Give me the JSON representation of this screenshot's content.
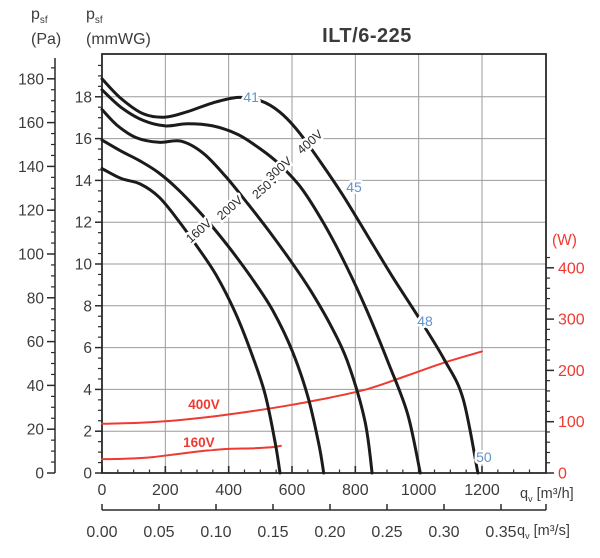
{
  "labels": {
    "p_base": "p",
    "p_sub": "sf",
    "pa_unit": "(Pa)",
    "mmwg_unit": "(mmWG)",
    "w_unit": "(W)",
    "q_base": "q",
    "q_sub": "v",
    "m3h_unit": " [m³/h]",
    "m3s_unit": " [m³/s]"
  },
  "chart_data": {
    "type": "line",
    "title": "ILT/6-225",
    "colors": {
      "curve_black": "#1b1b1b",
      "curve_red": "#ee3a31",
      "label_blue": "#6292cc",
      "grid": "#9b9b9b",
      "axis": "#2a2a2a",
      "text": "#3c3c3c"
    },
    "axes": {
      "pa": {
        "title": "psf (Pa)",
        "ticks": [
          0,
          20,
          40,
          60,
          80,
          100,
          120,
          140,
          160,
          180
        ],
        "minor_step": 5,
        "max_minor": 185
      },
      "mmwg": {
        "title": "psf (mmWG)",
        "ticks": [
          0,
          2,
          4,
          6,
          8,
          10,
          12,
          14,
          16,
          18
        ],
        "minor_step": 0.5,
        "max_minor": 19.5
      },
      "w": {
        "title": "(W)",
        "ticks": [
          0,
          100,
          200,
          300,
          400
        ],
        "minor_step": 20,
        "max_minor": 420
      },
      "m3h": {
        "title": "qv [m3/h]",
        "ticks": [
          0,
          200,
          400,
          600,
          800,
          1000,
          1200
        ],
        "minor_step": 50,
        "max_minor": 1350,
        "grid_ticks": [
          200,
          400,
          600,
          800,
          1000,
          1200
        ]
      },
      "m3s": {
        "title": "qv [m3/s]",
        "ticks": [
          "0.00",
          "0.05",
          "0.10",
          "0.15",
          "0.20",
          "0.25",
          "0.30",
          "0.35"
        ]
      }
    },
    "pressure_curves_pa_vs_m3h": [
      {
        "name": "160V",
        "label": {
          "q": 306,
          "pa": 110.5,
          "rot": -41
        },
        "points": [
          [
            0,
            139
          ],
          [
            60,
            134.5
          ],
          [
            120,
            132
          ],
          [
            180,
            126
          ],
          [
            240,
            115.5
          ],
          [
            300,
            103.5
          ],
          [
            360,
            90.5
          ],
          [
            420,
            73.5
          ],
          [
            470,
            55.5
          ],
          [
            515,
            36
          ],
          [
            548,
            13
          ],
          [
            562,
            0
          ]
        ]
      },
      {
        "name": "200V",
        "label": {
          "q": 404,
          "pa": 121.0,
          "rot": -41
        },
        "points": [
          [
            0,
            152
          ],
          [
            60,
            147
          ],
          [
            120,
            142.5
          ],
          [
            180,
            137
          ],
          [
            240,
            129.5
          ],
          [
            300,
            120.5
          ],
          [
            360,
            110.5
          ],
          [
            420,
            99.5
          ],
          [
            480,
            87.5
          ],
          [
            540,
            74
          ],
          [
            600,
            56
          ],
          [
            650,
            35
          ],
          [
            685,
            13
          ],
          [
            700,
            0
          ]
        ]
      },
      {
        "name": "250V",
        "label": {
          "q": 515,
          "pa": 130.6,
          "rot": -41
        },
        "points": [
          [
            0,
            166
          ],
          [
            50,
            158.5
          ],
          [
            110,
            153
          ],
          [
            180,
            151
          ],
          [
            250,
            151.5
          ],
          [
            320,
            146
          ],
          [
            390,
            135.5
          ],
          [
            460,
            123
          ],
          [
            530,
            110
          ],
          [
            600,
            96
          ],
          [
            660,
            83
          ],
          [
            720,
            68
          ],
          [
            775,
            51
          ],
          [
            830,
            24
          ],
          [
            853,
            0
          ]
        ]
      },
      {
        "name": "300V",
        "label": {
          "q": 559,
          "pa": 138.8,
          "rot": -41
        },
        "points": [
          [
            0,
            175
          ],
          [
            60,
            167
          ],
          [
            130,
            161
          ],
          [
            200,
            158.5
          ],
          [
            270,
            159.5
          ],
          [
            350,
            158.5
          ],
          [
            430,
            154.5
          ],
          [
            500,
            148
          ],
          [
            560,
            141
          ],
          [
            630,
            130
          ],
          [
            700,
            114
          ],
          [
            770,
            95
          ],
          [
            840,
            73
          ],
          [
            905,
            50
          ],
          [
            965,
            27
          ],
          [
            1005,
            0
          ]
        ]
      },
      {
        "name": "400V",
        "label": {
          "q": 657,
          "pa": 151.1,
          "rot": -41
        },
        "points": [
          [
            0,
            180
          ],
          [
            60,
            171
          ],
          [
            130,
            164
          ],
          [
            200,
            162.5
          ],
          [
            270,
            165
          ],
          [
            350,
            169
          ],
          [
            430,
            171.5
          ],
          [
            500,
            170
          ],
          [
            560,
            165
          ],
          [
            620,
            156
          ],
          [
            690,
            142
          ],
          [
            760,
            127
          ],
          [
            840,
            108
          ],
          [
            920,
            89
          ],
          [
            1000,
            71
          ],
          [
            1080,
            52
          ],
          [
            1140,
            34
          ],
          [
            1187,
            0
          ]
        ]
      }
    ],
    "power_curves_w_vs_m3h": [
      {
        "name": "400V",
        "label": {
          "q": 322,
          "w": 132.6
        },
        "points": [
          [
            0,
            96
          ],
          [
            120,
            98
          ],
          [
            240,
            103
          ],
          [
            360,
            111
          ],
          [
            480,
            121
          ],
          [
            600,
            133
          ],
          [
            720,
            147
          ],
          [
            840,
            164
          ],
          [
            960,
            189
          ],
          [
            1080,
            215
          ],
          [
            1200,
            237
          ]
        ]
      },
      {
        "name": "160V",
        "label": {
          "q": 306,
          "w": 58.5
        },
        "points": [
          [
            0,
            27
          ],
          [
            80,
            28
          ],
          [
            160,
            31
          ],
          [
            240,
            37
          ],
          [
            320,
            43
          ],
          [
            400,
            47
          ],
          [
            470,
            48
          ],
          [
            530,
            50
          ],
          [
            565,
            53
          ]
        ]
      }
    ],
    "sound_labels_db": [
      {
        "text": "41",
        "q": 471,
        "pa": 171.7
      },
      {
        "text": "45",
        "q": 796,
        "pa": 130.6
      },
      {
        "text": "48",
        "q": 1020,
        "pa": 69.4
      },
      {
        "text": "50",
        "q": 1206,
        "pa": 7.3
      }
    ]
  }
}
